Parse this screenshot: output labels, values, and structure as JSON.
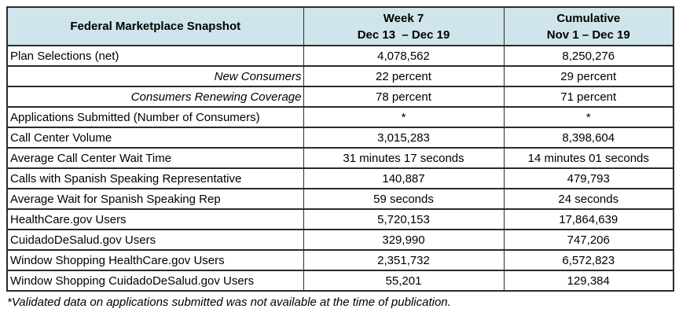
{
  "colors": {
    "header_bg": "#cfe4eb",
    "border": "#2b2b2b",
    "text": "#000000"
  },
  "table": {
    "title": "Federal Marketplace Snapshot",
    "columns": [
      {
        "label": "Week 7",
        "sublabel": "Dec 13  – Dec 19"
      },
      {
        "label": "Cumulative",
        "sublabel": "Nov 1 – Dec 19"
      }
    ],
    "rows": [
      {
        "label": "Plan Selections (net)",
        "week7": "4,078,562",
        "cumulative": "8,250,276",
        "indent_italic": false
      },
      {
        "label": "New Consumers",
        "week7": "22 percent",
        "cumulative": "29 percent",
        "indent_italic": true
      },
      {
        "label": "Consumers Renewing Coverage",
        "week7": "78 percent",
        "cumulative": "71 percent",
        "indent_italic": true
      },
      {
        "label": "Applications Submitted (Number of Consumers)",
        "week7": "*",
        "cumulative": "*",
        "indent_italic": false
      },
      {
        "label": "Call Center Volume",
        "week7": "3,015,283",
        "cumulative": "8,398,604",
        "indent_italic": false
      },
      {
        "label": "Average Call Center Wait Time",
        "week7": "31 minutes 17 seconds",
        "cumulative": "14 minutes 01 seconds",
        "indent_italic": false
      },
      {
        "label": "Calls with Spanish Speaking Representative",
        "week7": "140,887",
        "cumulative": "479,793",
        "indent_italic": false
      },
      {
        "label": "Average Wait for Spanish Speaking Rep",
        "week7": "59 seconds",
        "cumulative": "24 seconds",
        "indent_italic": false
      },
      {
        "label": "HealthCare.gov Users",
        "week7": "5,720,153",
        "cumulative": "17,864,639",
        "indent_italic": false
      },
      {
        "label": "CuidadoDeSalud.gov Users",
        "week7": "329,990",
        "cumulative": "747,206",
        "indent_italic": false
      },
      {
        "label": "Window Shopping HealthCare.gov Users",
        "week7": "2,351,732",
        "cumulative": "6,572,823",
        "indent_italic": false
      },
      {
        "label": "Window Shopping CuidadoDeSalud.gov Users",
        "week7": "55,201",
        "cumulative": "129,384",
        "indent_italic": false
      }
    ]
  },
  "footnote": {
    "text": "*Validated data on applications submitted was not available at the time of publication."
  }
}
